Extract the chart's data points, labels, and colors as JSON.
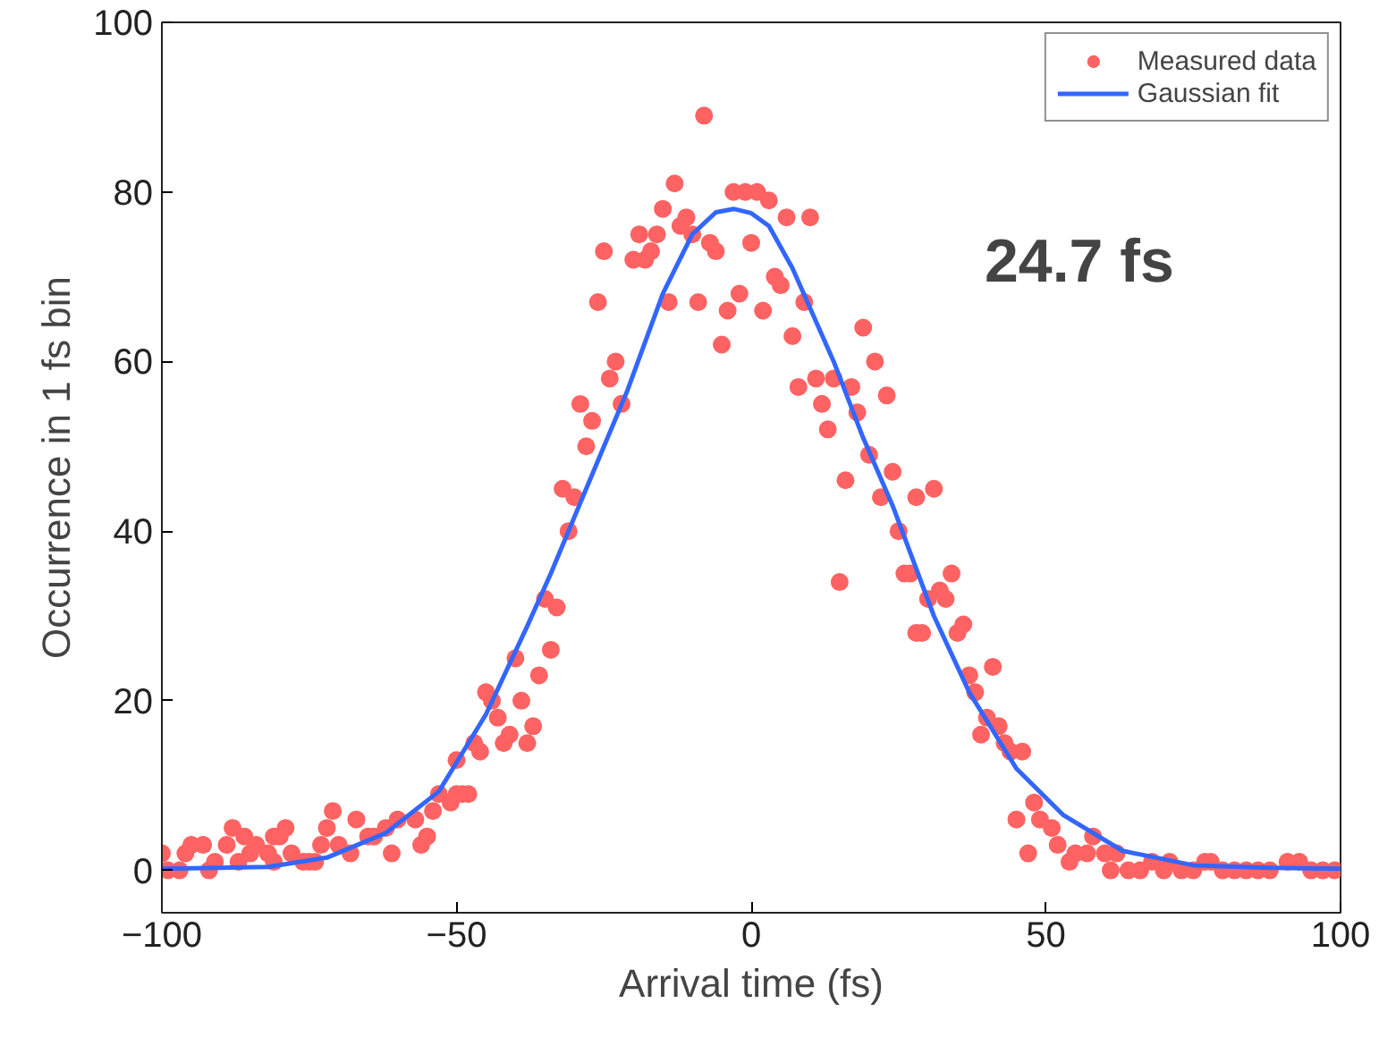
{
  "chart_data": {
    "type": "scatter",
    "xlabel": "Arrival time (fs)",
    "ylabel": "Occurrence in 1 fs bin",
    "xlim": [
      -100,
      100
    ],
    "xticks": [
      -100,
      -50,
      0,
      50,
      100
    ],
    "ylim": [
      -5,
      100
    ],
    "yticks": [
      0,
      20,
      40,
      60,
      80,
      100
    ],
    "grid": false,
    "legend": "top right",
    "annotations": [
      "24.7 fs"
    ],
    "series": [
      {
        "name": "Measured data",
        "marker": "circle",
        "color": "#ff6262",
        "x": [
          -100,
          -99,
          -97,
          -96,
          -95,
          -93,
          -92,
          -91,
          -89,
          -88,
          -87,
          -86,
          -85,
          -84,
          -82,
          -81,
          -81,
          -80,
          -79,
          -78,
          -76,
          -75,
          -74,
          -73,
          -72,
          -71,
          -70,
          -68,
          -67,
          -65,
          -64,
          -62,
          -61,
          -60,
          -57,
          -56,
          -55,
          -54,
          -53,
          -51,
          -50,
          -49,
          -48,
          -50,
          -47,
          -46,
          -45,
          -44,
          -43,
          -42,
          -41,
          -40,
          -39,
          -38,
          -37,
          -36,
          -34,
          -35,
          -33,
          -31,
          -32,
          -30,
          -28,
          -29,
          -27,
          -22,
          -24,
          -23,
          -26,
          -25,
          -20,
          -18,
          -17,
          -19,
          -16,
          -15,
          -13,
          -14,
          -12,
          -11,
          -10,
          -8,
          -9,
          -7,
          -6,
          -5,
          -4,
          -3,
          -2,
          -1,
          0,
          1,
          2,
          3,
          4,
          5,
          6,
          7,
          8,
          9,
          10,
          11,
          12,
          13,
          14,
          15,
          16,
          17,
          18,
          19,
          20,
          21,
          22,
          23,
          24,
          25,
          26,
          27,
          28,
          28,
          29,
          30,
          31,
          32,
          33,
          34,
          35,
          36,
          37,
          38,
          39,
          40,
          41,
          42,
          43,
          44,
          45,
          46,
          47,
          48,
          49,
          51,
          52,
          54,
          55,
          57,
          58,
          60,
          61,
          62,
          64,
          66,
          68,
          70,
          71,
          73,
          75,
          77,
          78,
          80,
          82,
          84,
          86,
          88,
          91,
          93,
          95,
          97,
          99
        ],
        "values": [
          2,
          0,
          0,
          2,
          3,
          3,
          0,
          1,
          3,
          5,
          1,
          4,
          2,
          3,
          2,
          1,
          4,
          4,
          5,
          2,
          1,
          1,
          1,
          3,
          5,
          7,
          3,
          2,
          6,
          4,
          4,
          5,
          2,
          6,
          6,
          3,
          4,
          7,
          9,
          8,
          9,
          9,
          9,
          13,
          15,
          14,
          21,
          20,
          18,
          15,
          16,
          25,
          20,
          15,
          17,
          23,
          26,
          32,
          31,
          40,
          45,
          44,
          50,
          55,
          53,
          55,
          58,
          60,
          67,
          73,
          72,
          72,
          73,
          75,
          75,
          78,
          81,
          67,
          76,
          77,
          75,
          89,
          67,
          74,
          73,
          62,
          66,
          80,
          68,
          80,
          74,
          80,
          66,
          79,
          70,
          69,
          77,
          63,
          57,
          67,
          77,
          58,
          55,
          52,
          58,
          34,
          46,
          57,
          54,
          64,
          49,
          60,
          44,
          56,
          47,
          40,
          35,
          35,
          44,
          28,
          28,
          32,
          45,
          33,
          32,
          35,
          28,
          29,
          23,
          21,
          16,
          18,
          24,
          17,
          15,
          14,
          6,
          14,
          2,
          8,
          6,
          5,
          3,
          1,
          2,
          2,
          4,
          2,
          0,
          2,
          0,
          0,
          1,
          0,
          1,
          0,
          0,
          1,
          1,
          0,
          0,
          0,
          0,
          0,
          1,
          1,
          0,
          0,
          0
        ]
      },
      {
        "name": "Gaussian fit",
        "type": "line",
        "line_style": "solid",
        "color": "#3366ff",
        "x": [
          -100,
          -90,
          -82,
          -72,
          -62,
          -53,
          -45,
          -38,
          -34,
          -28,
          -21,
          -15,
          -10,
          -6,
          -3,
          0,
          3,
          7,
          14,
          19,
          24,
          31,
          37,
          45,
          53,
          63,
          75,
          88,
          100
        ],
        "values": [
          0.2,
          0.3,
          0.4,
          1.5,
          4.4,
          9.3,
          18.4,
          28.8,
          35,
          45,
          56.6,
          68,
          75,
          77.6,
          78,
          77.5,
          76,
          71,
          60,
          51,
          43,
          30,
          21,
          12,
          6.5,
          2.3,
          0.6,
          0.3,
          0.2
        ]
      }
    ]
  }
}
